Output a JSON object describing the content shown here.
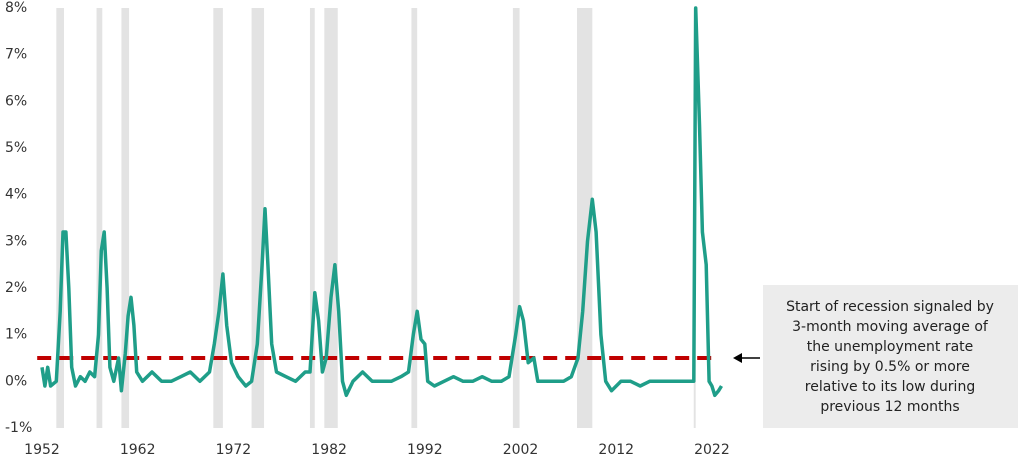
{
  "chart_data": {
    "type": "line",
    "x": [
      1952.0,
      1952.3,
      1952.6,
      1952.9,
      1953.5,
      1953.9,
      1954.2,
      1954.5,
      1954.8,
      1955.1,
      1955.5,
      1956.0,
      1956.5,
      1957.0,
      1957.5,
      1957.9,
      1958.2,
      1958.5,
      1958.8,
      1959.1,
      1959.5,
      1960.0,
      1960.3,
      1960.7,
      1961.0,
      1961.3,
      1961.6,
      1961.9,
      1962.5,
      1963.5,
      1964.5,
      1965.5,
      1966.5,
      1967.5,
      1968.5,
      1969.5,
      1970.0,
      1970.5,
      1970.9,
      1971.3,
      1971.8,
      1972.5,
      1973.3,
      1973.9,
      1974.5,
      1975.0,
      1975.3,
      1975.6,
      1976.0,
      1976.5,
      1977.5,
      1978.5,
      1979.5,
      1980.0,
      1980.5,
      1980.9,
      1981.3,
      1981.7,
      1982.2,
      1982.6,
      1983.0,
      1983.4,
      1983.8,
      1984.5,
      1985.5,
      1986.5,
      1987.5,
      1988.5,
      1989.5,
      1990.3,
      1990.8,
      1991.2,
      1991.6,
      1992.0,
      1992.3,
      1993.0,
      1994.0,
      1995.0,
      1996.0,
      1997.0,
      1998.0,
      1999.0,
      2000.0,
      2000.8,
      2001.5,
      2001.9,
      2002.3,
      2002.8,
      2003.4,
      2003.8,
      2004.5,
      2005.5,
      2006.5,
      2007.3,
      2008.0,
      2008.5,
      2009.0,
      2009.5,
      2009.9,
      2010.4,
      2010.9,
      2011.5,
      2012.5,
      2013.5,
      2014.5,
      2015.5,
      2016.5,
      2017.5,
      2018.5,
      2019.5,
      2020.1,
      2020.3,
      2020.7,
      2021.0,
      2021.4,
      2021.7,
      2022.0,
      2022.3,
      2022.7,
      2023.0
    ],
    "series": [
      {
        "color": "#1f9e89",
        "values": [
          0.3,
          -0.1,
          0.3,
          -0.1,
          0.0,
          1.5,
          3.2,
          3.2,
          2.0,
          0.3,
          -0.1,
          0.1,
          0.0,
          0.2,
          0.1,
          1.0,
          2.8,
          3.2,
          2.0,
          0.3,
          0.0,
          0.5,
          -0.2,
          0.6,
          1.4,
          1.8,
          1.2,
          0.2,
          0.0,
          0.2,
          0.0,
          0.0,
          0.1,
          0.2,
          0.0,
          0.2,
          0.8,
          1.5,
          2.3,
          1.2,
          0.4,
          0.1,
          -0.1,
          0.0,
          0.8,
          2.5,
          3.7,
          2.5,
          0.8,
          0.2,
          0.1,
          0.0,
          0.2,
          0.2,
          1.9,
          1.3,
          0.2,
          0.5,
          1.8,
          2.5,
          1.5,
          0.0,
          -0.3,
          0.0,
          0.2,
          0.0,
          0.0,
          0.0,
          0.1,
          0.2,
          1.0,
          1.5,
          0.9,
          0.8,
          0.0,
          -0.1,
          0.0,
          0.1,
          0.0,
          0.0,
          0.1,
          0.0,
          0.0,
          0.1,
          1.0,
          1.6,
          1.3,
          0.4,
          0.5,
          0.0,
          0.0,
          0.0,
          0.0,
          0.1,
          0.5,
          1.5,
          3.0,
          3.9,
          3.2,
          1.0,
          0.0,
          -0.2,
          0.0,
          0.0,
          -0.1,
          0.0,
          0.0,
          0.0,
          0.0,
          0.0,
          0.0,
          8.0,
          5.5,
          3.2,
          2.5,
          0.0,
          -0.1,
          -0.3,
          -0.2,
          -0.1
        ]
      }
    ],
    "recessions": [
      [
        1953.5,
        1954.3
      ],
      [
        1957.7,
        1958.3
      ],
      [
        1960.3,
        1961.1
      ],
      [
        1969.9,
        1970.9
      ],
      [
        1973.9,
        1975.2
      ],
      [
        1980.0,
        1980.5
      ],
      [
        1981.5,
        1982.9
      ],
      [
        1990.6,
        1991.2
      ],
      [
        2001.2,
        2001.9
      ],
      [
        2007.9,
        2009.5
      ],
      [
        2020.1,
        2020.3
      ]
    ],
    "recession_color": "#e3e3e3",
    "threshold": 0.5,
    "threshold_color": "#c00000",
    "xlim": [
      1951.5,
      2023.5
    ],
    "xticks": [
      1952,
      1962,
      1972,
      1982,
      1992,
      2002,
      2012,
      2022
    ],
    "ylim": [
      -1,
      8
    ],
    "yticks": [
      {
        "value": -1,
        "label": "-1%"
      },
      {
        "value": 0,
        "label": "0%"
      },
      {
        "value": 1,
        "label": "1%"
      },
      {
        "value": 2,
        "label": "2%"
      },
      {
        "value": 3,
        "label": "3%"
      },
      {
        "value": 4,
        "label": "4%"
      },
      {
        "value": 5,
        "label": "5%"
      },
      {
        "value": 6,
        "label": "6%"
      },
      {
        "value": 7,
        "label": "7%"
      },
      {
        "value": 8,
        "label": "8%"
      }
    ],
    "annotation": [
      "Start of recession signaled by",
      "3-month moving average of",
      "the unemployment rate",
      "rising by 0.5% or more",
      "relative to its low during",
      "previous 12 months"
    ]
  }
}
